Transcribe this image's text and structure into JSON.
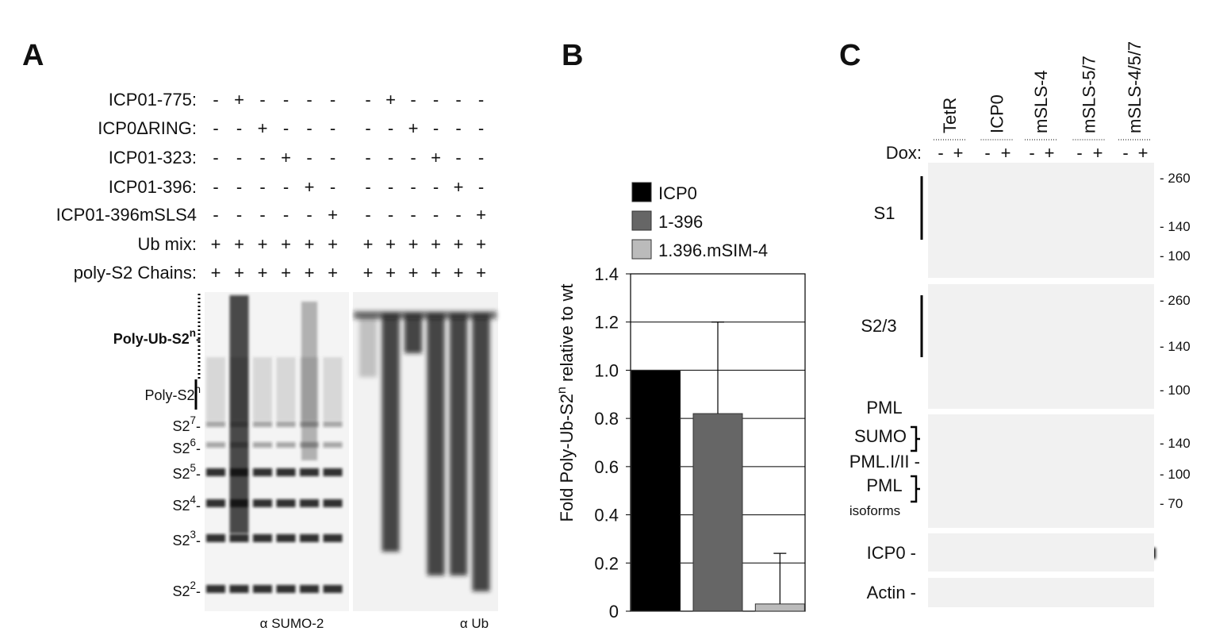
{
  "panel_labels": [
    "A",
    "B",
    "C"
  ],
  "panel_a": {
    "rows": [
      {
        "label": "ICP01-775:",
        "signs": [
          "-",
          "+",
          "-",
          "-",
          "-",
          "-",
          "-",
          "+",
          "-",
          "-",
          "-",
          "-"
        ]
      },
      {
        "label": "ICP0ΔRING:",
        "signs": [
          "-",
          "-",
          "+",
          "-",
          "-",
          "-",
          "-",
          "-",
          "+",
          "-",
          "-",
          "-"
        ]
      },
      {
        "label": "ICP01-323:",
        "signs": [
          "-",
          "-",
          "-",
          "+",
          "-",
          "-",
          "-",
          "-",
          "-",
          "+",
          "-",
          "-"
        ]
      },
      {
        "label": "ICP01-396:",
        "signs": [
          "-",
          "-",
          "-",
          "-",
          "+",
          "-",
          "-",
          "-",
          "-",
          "-",
          "+",
          "-"
        ]
      },
      {
        "label": "ICP01-396mSLS4",
        "signs": [
          "-",
          "-",
          "-",
          "-",
          "-",
          "+",
          "-",
          "-",
          "-",
          "-",
          "-",
          "+"
        ]
      },
      {
        "label": "Ub mix:",
        "signs": [
          "+",
          "+",
          "+",
          "+",
          "+",
          "+",
          "+",
          "+",
          "+",
          "+",
          "+",
          "+"
        ]
      },
      {
        "label": "poly-S2 Chains:",
        "signs": [
          "+",
          "+",
          "+",
          "+",
          "+",
          "+",
          "+",
          "+",
          "+",
          "+",
          "+",
          "+"
        ]
      }
    ],
    "markers": [
      {
        "text": "Poly-Ub-S2",
        "sup": "n",
        "suffix": "-"
      },
      {
        "text": "Poly-S2",
        "sup": "n",
        "suffix": ""
      },
      {
        "text": "S2",
        "sup": "7",
        "suffix": "-"
      },
      {
        "text": "S2",
        "sup": "6",
        "suffix": "-"
      },
      {
        "text": "S2",
        "sup": "5",
        "suffix": "-"
      },
      {
        "text": "S2",
        "sup": "4",
        "suffix": "-"
      },
      {
        "text": "S2",
        "sup": "3",
        "suffix": "-"
      },
      {
        "text": "S2",
        "sup": "2",
        "suffix": "-"
      }
    ],
    "blot_labels": [
      "α SUMO-2",
      "α Ub"
    ]
  },
  "chart_data": {
    "type": "bar",
    "ylabel": [
      "Fold Poly-Ub-S2",
      "n",
      " relative to wt"
    ],
    "categories": [
      "ICP0",
      "1-396",
      "1.396.mSIM-4"
    ],
    "colors": [
      "#000000",
      "#666666",
      "#bbbbbb"
    ],
    "values": [
      1.0,
      0.82,
      0.03
    ],
    "errors": [
      null,
      0.38,
      0.21
    ],
    "ylim": [
      0,
      1.4
    ],
    "yticks": [
      0,
      0.2,
      0.4,
      0.6,
      0.8,
      {
        "value": 1.0,
        "label": "1.0"
      },
      1.2,
      1.4
    ],
    "grid": true
  },
  "panel_c": {
    "lanes": [
      "TetR",
      "ICP0",
      "mSLS-4",
      "mSLS-5/7",
      "mSLS-4/5/7"
    ],
    "dox_label": "Dox:",
    "dox_signs": [
      "-",
      "+",
      "-",
      "+",
      "-",
      "+",
      "-",
      "+",
      "-",
      "+"
    ],
    "blots": [
      {
        "labels": [
          "S1"
        ],
        "mw": [
          "- 260",
          "- 140",
          "- 100"
        ]
      },
      {
        "labels": [
          "S2/3"
        ],
        "mw": [
          "- 260",
          "- 140",
          "- 100"
        ]
      },
      {
        "labels": [
          "PML",
          "SUMO",
          "PML.I/II -",
          "PML",
          "isoforms"
        ],
        "mw": [
          "- 140",
          "- 100",
          "- 70"
        ]
      },
      {
        "labels": [
          "ICP0 -"
        ],
        "mw": []
      },
      {
        "labels": [
          "Actin -"
        ],
        "mw": []
      }
    ]
  }
}
